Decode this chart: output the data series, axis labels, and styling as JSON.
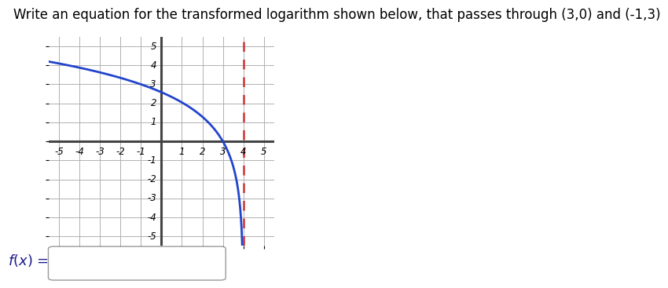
{
  "title": "Write an equation for the transformed logarithm shown below, that passes through (3,0) and (-1,3)",
  "title_fontsize": 12,
  "xlim": [
    -5.5,
    5.5
  ],
  "ylim": [
    -5.5,
    5.5
  ],
  "xticks": [
    -5,
    -4,
    -3,
    -2,
    -1,
    1,
    2,
    3,
    4,
    5
  ],
  "yticks": [
    -5,
    -4,
    -3,
    -2,
    -1,
    1,
    2,
    3,
    4,
    5
  ],
  "curve_color": "#2244cc",
  "asymptote_color": "#cc3333",
  "asymptote_x": 4,
  "grid_color": "#b0b0b0",
  "axis_color": "#444444",
  "background_color": "#ffffff",
  "figure_width": 8.3,
  "figure_height": 3.7
}
